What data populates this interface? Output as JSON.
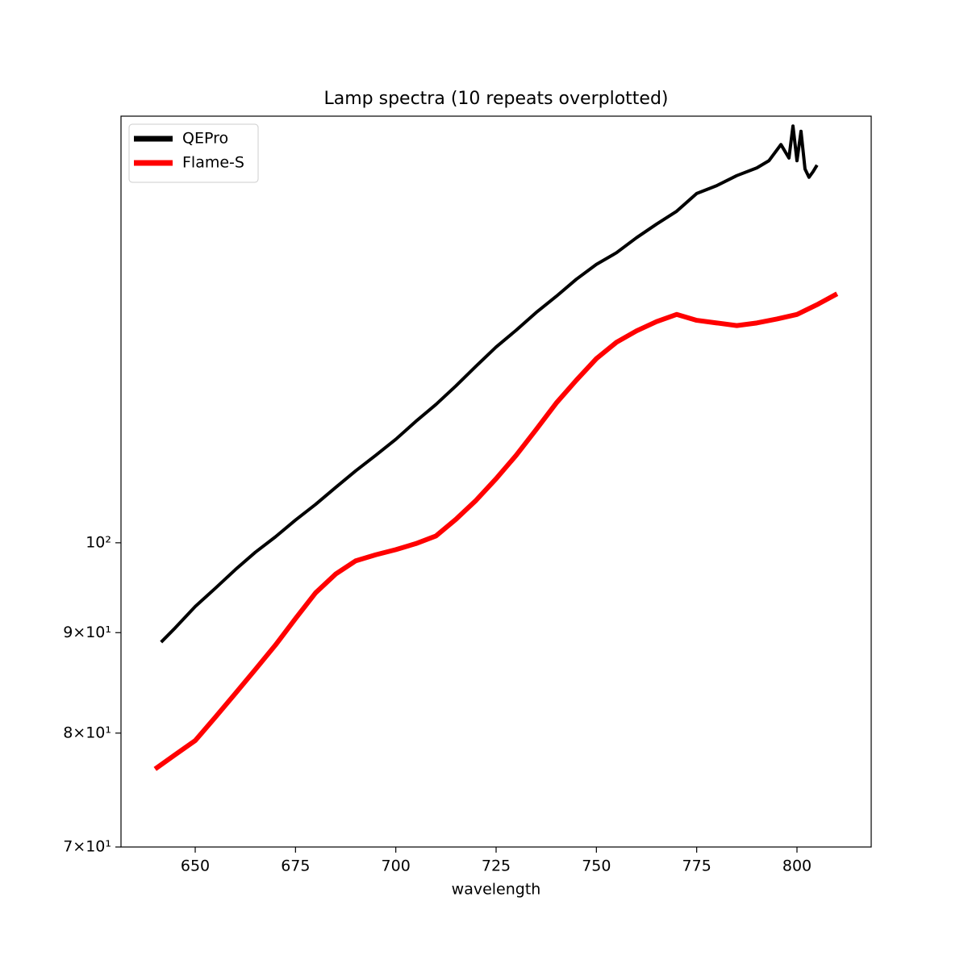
{
  "chart_data": {
    "type": "line",
    "title": "Lamp spectra (10 repeats overplotted)",
    "x_label": "wavelength",
    "xlim": [
      631.5,
      818.5
    ],
    "xticks": [
      650,
      675,
      700,
      725,
      750,
      775,
      800
    ],
    "ylim": [
      70,
      164.9
    ],
    "y_log": true,
    "yticks": [
      {
        "value": 70,
        "label": "7×10¹"
      },
      {
        "value": 80,
        "label": "8×10¹"
      },
      {
        "value": 90,
        "label": "9×10¹"
      },
      {
        "value": 100,
        "label": "10²"
      }
    ],
    "legend": "upper left",
    "grid": false,
    "series": [
      {
        "name": "QEPro",
        "color": "#000000",
        "x": [
          641.5,
          645,
          650,
          655,
          660,
          665,
          670,
          675,
          680,
          685,
          690,
          695,
          700,
          705,
          710,
          715,
          720,
          725,
          730,
          735,
          740,
          745,
          750,
          755,
          760,
          765,
          770,
          775,
          780,
          785,
          790,
          793,
          796,
          798,
          799,
          800,
          801,
          802,
          803,
          804,
          805
        ],
        "values": [
          89.0,
          90.5,
          92.8,
          94.8,
          96.9,
          98.9,
          100.7,
          102.7,
          104.6,
          106.7,
          108.8,
          110.8,
          112.9,
          115.3,
          117.6,
          120.2,
          123.0,
          125.8,
          128.3,
          131.0,
          133.5,
          136.2,
          138.6,
          140.5,
          143.0,
          145.3,
          147.5,
          150.6,
          152.0,
          153.8,
          155.2,
          156.5,
          159.5,
          157.0,
          163.0,
          156.5,
          162.0,
          155.0,
          153.5,
          154.5,
          155.7
        ]
      },
      {
        "name": "Flame-S",
        "color": "#ff0000",
        "x": [
          640,
          645,
          650,
          655,
          660,
          665,
          670,
          675,
          680,
          685,
          690,
          695,
          700,
          705,
          710,
          715,
          720,
          725,
          730,
          735,
          740,
          745,
          750,
          755,
          760,
          765,
          770,
          775,
          780,
          785,
          790,
          795,
          800,
          805,
          810
        ],
        "values": [
          76.7,
          78.0,
          79.3,
          81.5,
          83.8,
          86.2,
          88.7,
          91.5,
          94.3,
          96.4,
          97.9,
          98.6,
          99.2,
          99.9,
          100.8,
          102.8,
          105.1,
          107.8,
          110.8,
          114.2,
          117.8,
          121.0,
          124.1,
          126.5,
          128.2,
          129.6,
          130.7,
          129.8,
          129.4,
          129.0,
          129.4,
          130.0,
          130.7,
          132.2,
          133.9
        ]
      }
    ]
  }
}
